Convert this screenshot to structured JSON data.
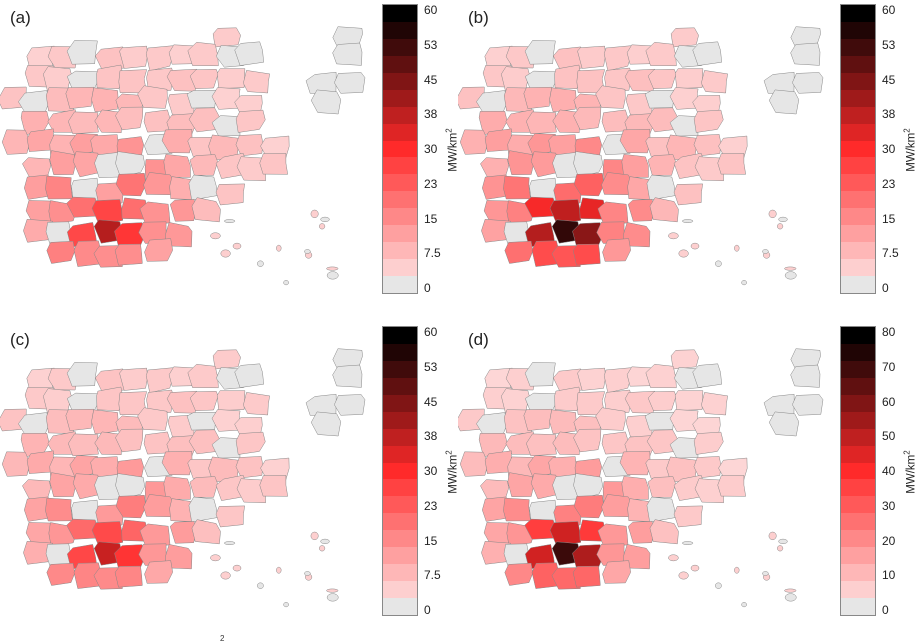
{
  "panels": [
    {
      "id": "a",
      "label": "(a)",
      "max": 60,
      "ticks": [
        "60",
        "53",
        "45",
        "38",
        "30",
        "23",
        "15",
        "7.5",
        "0"
      ],
      "center": [
        10,
        45
      ],
      "outer": [
        4,
        22
      ]
    },
    {
      "id": "b",
      "label": "(b)",
      "max": 60,
      "ticks": [
        "60",
        "53",
        "45",
        "38",
        "30",
        "23",
        "15",
        "7.5",
        "0"
      ],
      "center": [
        20,
        62
      ],
      "outer": [
        4,
        26
      ]
    },
    {
      "id": "c",
      "label": "(c)",
      "max": 60,
      "ticks": [
        "60",
        "53",
        "45",
        "38",
        "30",
        "23",
        "15",
        "7.5",
        "0"
      ],
      "center": [
        12,
        42
      ],
      "outer": [
        4,
        20
      ]
    },
    {
      "id": "d",
      "label": "(d)",
      "max": 80,
      "ticks": [
        "80",
        "70",
        "60",
        "50",
        "40",
        "30",
        "20",
        "10",
        "0"
      ],
      "center": [
        20,
        82
      ],
      "outer": [
        4,
        28
      ]
    }
  ],
  "unit": {
    "base": "MW/km",
    "exp": "2"
  },
  "footnote": "2",
  "colors": {
    "empty": "#e6e6e6",
    "low": "#fde6e6",
    "mid": "#ff2a2a",
    "high": "#000000",
    "border": "#888888"
  }
}
